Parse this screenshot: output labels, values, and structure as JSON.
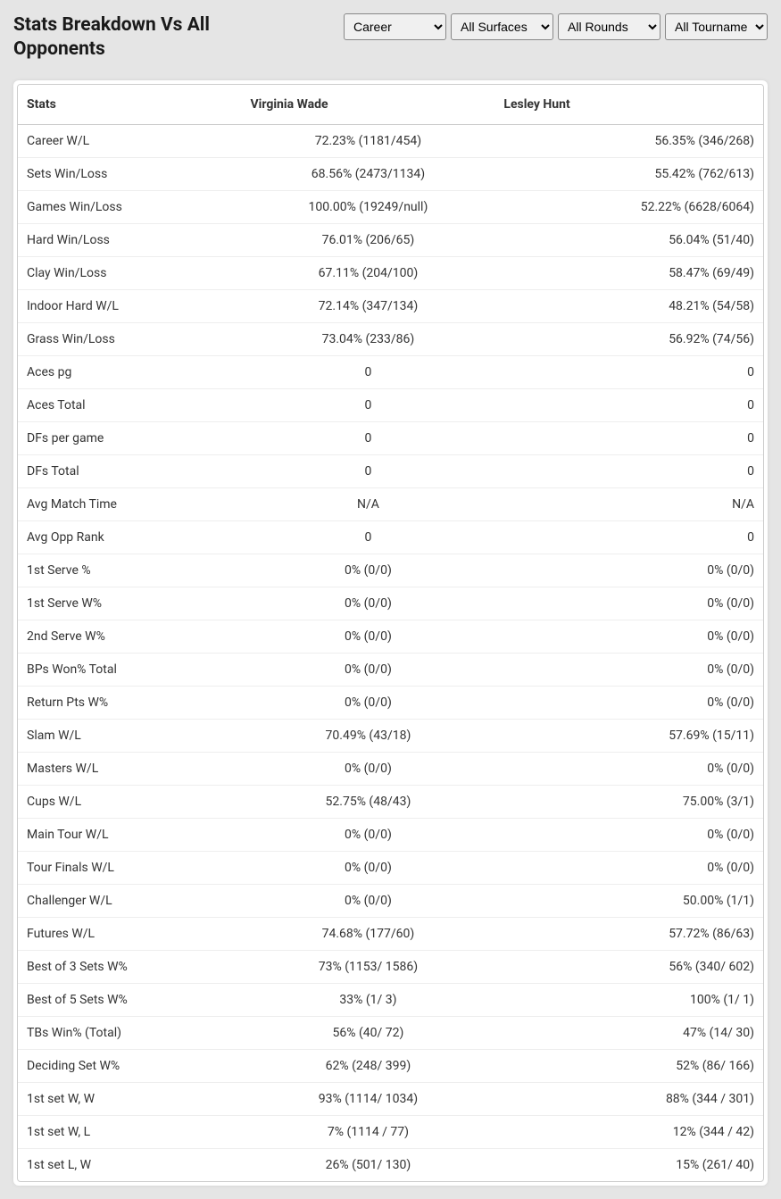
{
  "title": "Stats Breakdown Vs All Opponents",
  "filters": {
    "period": {
      "selected": "Career",
      "options": [
        "Career"
      ]
    },
    "surface": {
      "selected": "All Surfaces",
      "options": [
        "All Surfaces"
      ]
    },
    "rounds": {
      "selected": "All Rounds",
      "options": [
        "All Rounds"
      ]
    },
    "tourn": {
      "selected": "All Tournaments",
      "options": [
        "All Tournaments"
      ]
    }
  },
  "table": {
    "columns": [
      "Stats",
      "Virginia Wade",
      "Lesley Hunt"
    ],
    "rows": [
      [
        "Career W/L",
        "72.23% (1181/454)",
        "56.35% (346/268)"
      ],
      [
        "Sets Win/Loss",
        "68.56% (2473/1134)",
        "55.42% (762/613)"
      ],
      [
        "Games Win/Loss",
        "100.00% (19249/null)",
        "52.22% (6628/6064)"
      ],
      [
        "Hard Win/Loss",
        "76.01% (206/65)",
        "56.04% (51/40)"
      ],
      [
        "Clay Win/Loss",
        "67.11% (204/100)",
        "58.47% (69/49)"
      ],
      [
        "Indoor Hard W/L",
        "72.14% (347/134)",
        "48.21% (54/58)"
      ],
      [
        "Grass Win/Loss",
        "73.04% (233/86)",
        "56.92% (74/56)"
      ],
      [
        "Aces pg",
        "0",
        "0"
      ],
      [
        "Aces Total",
        "0",
        "0"
      ],
      [
        "DFs per game",
        "0",
        "0"
      ],
      [
        "DFs Total",
        "0",
        "0"
      ],
      [
        "Avg Match Time",
        "N/A",
        "N/A"
      ],
      [
        "Avg Opp Rank",
        "0",
        "0"
      ],
      [
        "1st Serve %",
        "0% (0/0)",
        "0% (0/0)"
      ],
      [
        "1st Serve W%",
        "0% (0/0)",
        "0% (0/0)"
      ],
      [
        "2nd Serve W%",
        "0% (0/0)",
        "0% (0/0)"
      ],
      [
        "BPs Won% Total",
        "0% (0/0)",
        "0% (0/0)"
      ],
      [
        "Return Pts W%",
        "0% (0/0)",
        "0% (0/0)"
      ],
      [
        "Slam W/L",
        "70.49% (43/18)",
        "57.69% (15/11)"
      ],
      [
        "Masters W/L",
        "0% (0/0)",
        "0% (0/0)"
      ],
      [
        "Cups W/L",
        "52.75% (48/43)",
        "75.00% (3/1)"
      ],
      [
        "Main Tour W/L",
        "0% (0/0)",
        "0% (0/0)"
      ],
      [
        "Tour Finals W/L",
        "0% (0/0)",
        "0% (0/0)"
      ],
      [
        "Challenger W/L",
        "0% (0/0)",
        "50.00% (1/1)"
      ],
      [
        "Futures W/L",
        "74.68% (177/60)",
        "57.72% (86/63)"
      ],
      [
        "Best of 3 Sets W%",
        "73% (1153/ 1586)",
        "56% (340/ 602)"
      ],
      [
        "Best of 5 Sets W%",
        "33% (1/ 3)",
        "100% (1/ 1)"
      ],
      [
        "TBs Win% (Total)",
        "56% (40/ 72)",
        "47% (14/ 30)"
      ],
      [
        "Deciding Set W%",
        "62% (248/ 399)",
        "52% (86/ 166)"
      ],
      [
        "1st set W, W",
        "93% (1114/ 1034)",
        "88% (344 / 301)"
      ],
      [
        "1st set W, L",
        "7% (1114 / 77)",
        "12% (344 / 42)"
      ],
      [
        "1st set L, W",
        "26% (501/ 130)",
        "15% (261/ 40)"
      ]
    ]
  }
}
